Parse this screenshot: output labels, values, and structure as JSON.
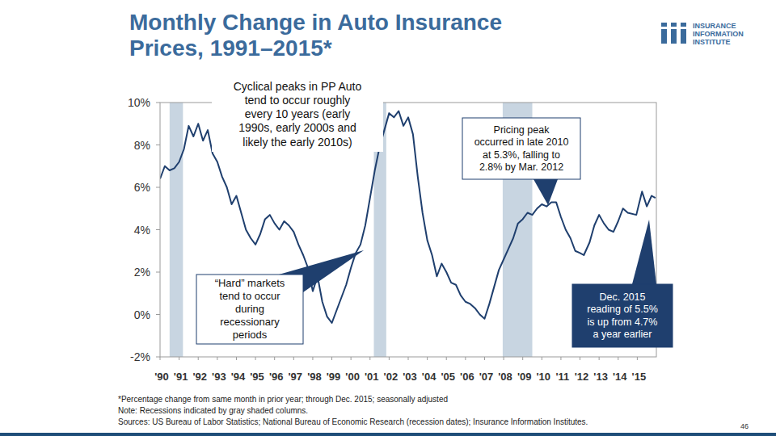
{
  "chart_data": {
    "type": "line",
    "title": "Monthly Change in Auto Insurance Prices, 1991–2015*",
    "color": "#1f3f6e",
    "x": [
      1990,
      1990.25,
      1990.5,
      1990.75,
      1991,
      1991.25,
      1991.5,
      1991.75,
      1992,
      1992.25,
      1992.5,
      1992.75,
      1993,
      1993.25,
      1993.5,
      1993.75,
      1994,
      1994.25,
      1994.5,
      1994.75,
      1995,
      1995.25,
      1995.5,
      1995.75,
      1996,
      1996.25,
      1996.5,
      1996.75,
      1997,
      1997.25,
      1997.5,
      1997.75,
      1998,
      1998.25,
      1998.5,
      1998.75,
      1999,
      1999.25,
      1999.5,
      1999.75,
      2000,
      2000.25,
      2000.5,
      2000.75,
      2001,
      2001.25,
      2001.5,
      2001.75,
      2002,
      2002.25,
      2002.5,
      2002.75,
      2003,
      2003.25,
      2003.5,
      2003.75,
      2004,
      2004.25,
      2004.5,
      2004.75,
      2005,
      2005.25,
      2005.5,
      2005.75,
      2006,
      2006.25,
      2006.5,
      2006.75,
      2007,
      2007.25,
      2007.5,
      2007.75,
      2008,
      2008.25,
      2008.5,
      2008.75,
      2009,
      2009.25,
      2009.5,
      2009.75,
      2010,
      2010.25,
      2010.5,
      2010.75,
      2011,
      2011.25,
      2011.5,
      2011.75,
      2012,
      2012.2,
      2012.5,
      2012.75,
      2013,
      2013.25,
      2013.5,
      2013.75,
      2014,
      2014.25,
      2014.5,
      2014.95,
      2015.25,
      2015.5,
      2015.75,
      2015.95
    ],
    "values": [
      6.4,
      7.0,
      6.8,
      6.9,
      7.2,
      7.8,
      8.9,
      8.4,
      9.0,
      8.2,
      8.7,
      7.6,
      7.2,
      6.5,
      6.0,
      5.2,
      5.6,
      4.8,
      4.0,
      3.6,
      3.3,
      3.8,
      4.5,
      4.7,
      4.3,
      4.0,
      4.4,
      4.2,
      3.9,
      3.3,
      2.8,
      2.2,
      1.1,
      1.8,
      0.6,
      -0.1,
      -0.4,
      0.2,
      0.8,
      1.4,
      2.2,
      2.9,
      3.3,
      4.2,
      5.5,
      6.8,
      7.9,
      8.7,
      9.5,
      9.3,
      9.6,
      8.9,
      9.3,
      8.5,
      6.5,
      4.8,
      3.5,
      2.8,
      1.8,
      2.4,
      2.0,
      1.5,
      1.4,
      0.9,
      0.6,
      0.5,
      0.3,
      0.0,
      -0.2,
      0.5,
      1.3,
      2.1,
      2.6,
      3.1,
      3.6,
      4.3,
      4.5,
      4.8,
      4.7,
      5.0,
      5.2,
      5.1,
      5.3,
      5.3,
      4.6,
      4.0,
      3.6,
      3.0,
      2.9,
      2.8,
      3.4,
      4.2,
      4.7,
      4.3,
      4.0,
      3.9,
      4.4,
      5.0,
      4.8,
      4.7,
      5.8,
      5.1,
      5.6,
      5.5
    ],
    "xlim": [
      1990,
      2016
    ],
    "xticks": [
      {
        "value": 1990,
        "label": "'90"
      },
      {
        "value": 1991,
        "label": "'91"
      },
      {
        "value": 1992,
        "label": "'92"
      },
      {
        "value": 1993,
        "label": "'93"
      },
      {
        "value": 1994,
        "label": "'94"
      },
      {
        "value": 1995,
        "label": "'95"
      },
      {
        "value": 1996,
        "label": "'96"
      },
      {
        "value": 1997,
        "label": "'97"
      },
      {
        "value": 1998,
        "label": "'98"
      },
      {
        "value": 1999,
        "label": "'99"
      },
      {
        "value": 2000,
        "label": "'00"
      },
      {
        "value": 2001,
        "label": "'01"
      },
      {
        "value": 2002,
        "label": "'02"
      },
      {
        "value": 2003,
        "label": "'03"
      },
      {
        "value": 2004,
        "label": "'04"
      },
      {
        "value": 2005,
        "label": "'05"
      },
      {
        "value": 2006,
        "label": "'06"
      },
      {
        "value": 2007,
        "label": "'07"
      },
      {
        "value": 2008,
        "label": "'08"
      },
      {
        "value": 2009,
        "label": "'09"
      },
      {
        "value": 2010,
        "label": "'10"
      },
      {
        "value": 2011,
        "label": "'11"
      },
      {
        "value": 2012,
        "label": "'12"
      },
      {
        "value": 2013,
        "label": "'13"
      },
      {
        "value": 2014,
        "label": "'14"
      },
      {
        "value": 2015,
        "label": "'15"
      }
    ],
    "ylim": [
      -2,
      10
    ],
    "yticks": [
      {
        "value": -2,
        "label": "-2%"
      },
      {
        "value": 0,
        "label": "0%"
      },
      {
        "value": 2,
        "label": "2%"
      },
      {
        "value": 4,
        "label": "4%"
      },
      {
        "value": 6,
        "label": "6%"
      },
      {
        "value": 8,
        "label": "8%"
      },
      {
        "value": 10,
        "label": "10%"
      }
    ],
    "grid": false,
    "recessions": [
      {
        "start": 1990.5,
        "end": 1991.2
      },
      {
        "start": 2001.2,
        "end": 2001.85
      },
      {
        "start": 2007.95,
        "end": 2009.5
      }
    ],
    "annotations": [
      {
        "lines": [
          "Cyclical peaks in PP Auto",
          "tend to occur roughly",
          "every 10 years (early",
          "1990s, early 2000s and",
          "likely the early 2010s)"
        ]
      },
      {
        "lines": [
          "“Hard” markets",
          "tend to occur",
          "during",
          "recessionary",
          "periods"
        ]
      },
      {
        "lines": [
          "Pricing peak",
          "occurred in late 2010",
          "at 5.3%, falling to",
          "2.8% by Mar. 2012"
        ]
      },
      {
        "lines": [
          "Dec. 2015",
          "reading of 5.5%",
          "is up from 4.7%",
          "a year earlier"
        ]
      }
    ],
    "logo": [
      "INSURANCE",
      "INFORMATION",
      "INSTITUTE"
    ],
    "footnotes": [
      "*Percentage change from same month in prior year; through Dec. 2015; seasonally adjusted",
      "Note: Recessions indicated by gray shaded columns.",
      "Sources: US Bureau of Labor Statistics; National Bureau of Economic Research (recession dates); Insurance Information Institutes."
    ],
    "page_number": "46"
  }
}
